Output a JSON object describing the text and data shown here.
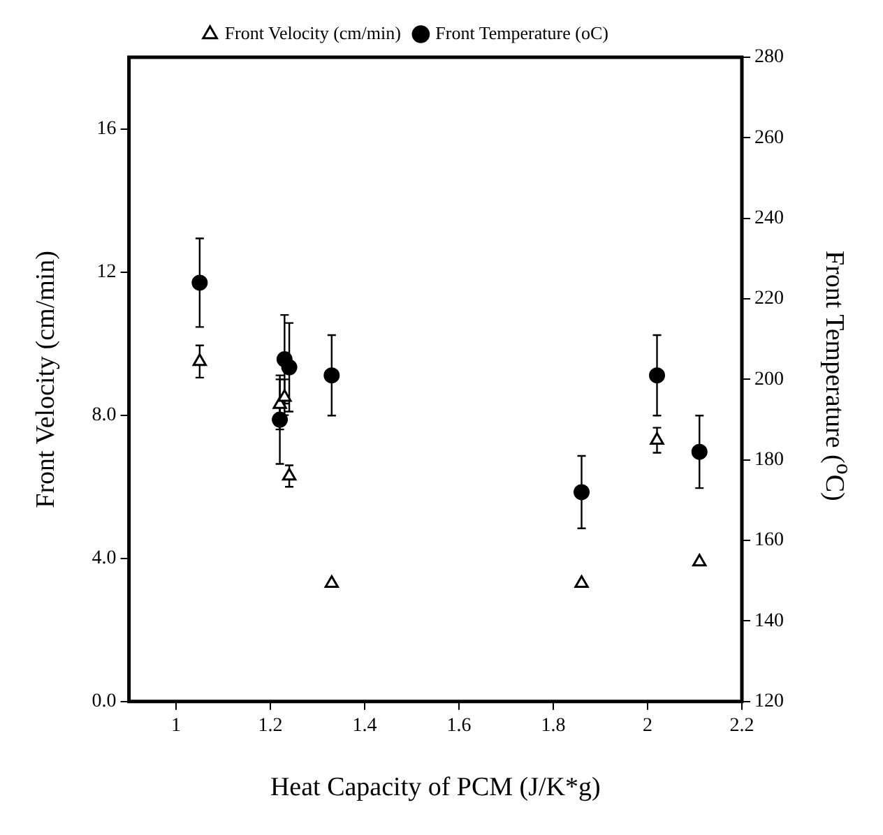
{
  "chart_data": {
    "type": "scatter",
    "xlabel": "Heat Capacity of PCM (J/K*g)",
    "ylabel": "Front Velocity (cm/min)",
    "y2label": "Front Temperature ($^{o}$C)",
    "xlim": [
      0.9,
      2.2
    ],
    "xticks": [
      1,
      1.2,
      1.4,
      1.6,
      1.8,
      2,
      2.2
    ],
    "ylim": [
      0,
      18
    ],
    "yticks": [
      {
        "value": 0,
        "label": "0.0"
      },
      {
        "value": 4,
        "label": "4.0"
      },
      {
        "value": 8,
        "label": "8.0"
      },
      12,
      16
    ],
    "y2lim": [
      120,
      280
    ],
    "y2ticks": [
      120,
      140,
      160,
      180,
      200,
      220,
      240,
      260,
      280
    ],
    "legend": "top",
    "grid": false,
    "series": [
      {
        "name": "Front Velocity (cm/min)",
        "color": "#000000",
        "marker": "triangle",
        "x": [
          1.05,
          1.22,
          1.23,
          1.24,
          1.33,
          1.86,
          2.02,
          2.11
        ],
        "values": [
          9.5,
          8.3,
          8.5,
          6.3,
          3.3,
          3.3,
          7.3,
          3.9
        ],
        "errors": [
          0.45,
          0.7,
          0.5,
          0.3,
          null,
          null,
          0.35,
          null
        ]
      },
      {
        "name": "Front Temperature (oC)",
        "color": "#000000",
        "marker": "circle",
        "axis": "y2",
        "x": [
          1.05,
          1.22,
          1.23,
          1.24,
          1.33,
          1.86,
          2.02,
          2.11
        ],
        "values": [
          224,
          190,
          205,
          203,
          201,
          172,
          201,
          182
        ],
        "errors": [
          11,
          11,
          11,
          11,
          10,
          9,
          10,
          9
        ]
      }
    ]
  }
}
